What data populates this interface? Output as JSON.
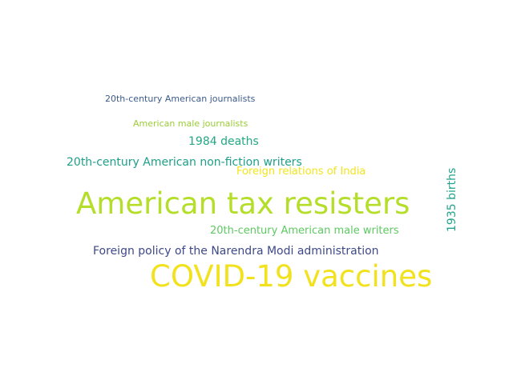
{
  "words": [
    {
      "key": "american_journalists",
      "text": "20th-century American journalists",
      "color": "#3b5a8a"
    },
    {
      "key": "male_journalists",
      "text": "American male journalists",
      "color": "#9ccc38"
    },
    {
      "key": "deaths_1984",
      "text": "1984 deaths",
      "color": "#22a884"
    },
    {
      "key": "nonfiction_writers",
      "text": "20th-century American non-fiction writers",
      "color": "#1f9e89"
    },
    {
      "key": "foreign_relations",
      "text": "Foreign relations of India",
      "color": "#f2e51d"
    },
    {
      "key": "tax_resisters",
      "text": "American tax resisters",
      "color": "#b5de2b"
    },
    {
      "key": "male_writers",
      "text": "20th-century American male writers",
      "color": "#5ec962"
    },
    {
      "key": "births_1935",
      "text": "1935 births",
      "color": "#21a38b"
    },
    {
      "key": "modi_policy",
      "text": "Foreign policy of the Narendra Modi administration",
      "color": "#3e4989"
    },
    {
      "key": "covid_vaccines",
      "text": "COVID-19 vaccines",
      "color": "#f1e21d"
    }
  ]
}
